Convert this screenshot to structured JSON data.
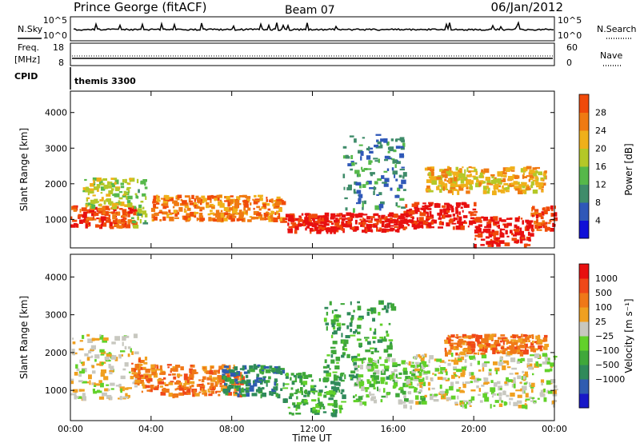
{
  "header": {
    "station": "Prince George (fitACF)",
    "beam": "Beam 07",
    "date": "06/Jan/2012"
  },
  "top_panels": {
    "nsky_label": "N.Sky",
    "nsearch_label": "N.Search",
    "noise_ticks": [
      "10^5",
      "10^0"
    ],
    "freq_label": "Freq.",
    "freq_unit": "[MHz]",
    "freq_ticks": [
      "18",
      "8"
    ],
    "nave_label": "Nave",
    "nave_ticks": [
      "60",
      "0"
    ],
    "cpid_label": "CPID",
    "cpid_value": "themis 3300"
  },
  "colors": {
    "power": [
      "#1010d8",
      "#2f58b8",
      "#3f8c6a",
      "#56b84a",
      "#b4c828",
      "#f0b01a",
      "#f07a12",
      "#f04a0a",
      "#e81010"
    ],
    "velocity": [
      "#1818c8",
      "#2f5cb0",
      "#2f8a5a",
      "#3fa83a",
      "#62d12a",
      "#c8c8c0",
      "#f0a020",
      "#f07818",
      "#f04818",
      "#e81010"
    ]
  },
  "chart_data": [
    {
      "type": "heatmap",
      "name": "power",
      "ylabel": "Slant Range [km]",
      "yticks": [
        "1000",
        "2000",
        "3000",
        "4000"
      ],
      "ylim": [
        200,
        4600
      ],
      "xlim": [
        "00:00",
        "24:00"
      ],
      "colorbar_label": "Power [dB]",
      "colorbar_ticks": [
        "4",
        "8",
        "12",
        "16",
        "20",
        "24",
        "28"
      ],
      "colorbar_range": [
        0,
        32
      ],
      "bands": [
        {
          "t0": 0.0,
          "t1": 3.2,
          "r0": 800,
          "r1": 1400,
          "level": 7
        },
        {
          "t0": 0.6,
          "t1": 3.0,
          "r0": 1400,
          "r1": 2200,
          "level": 4
        },
        {
          "t0": 3.0,
          "t1": 3.7,
          "r0": 800,
          "r1": 2300,
          "level": 3
        },
        {
          "t0": 4.0,
          "t1": 10.5,
          "r0": 1000,
          "r1": 1700,
          "level": 6
        },
        {
          "t0": 10.5,
          "t1": 16.5,
          "r0": 700,
          "r1": 1200,
          "level": 8
        },
        {
          "t0": 13.5,
          "t1": 16.5,
          "r0": 1300,
          "r1": 3400,
          "level": 2
        },
        {
          "t0": 16.5,
          "t1": 20.0,
          "r0": 800,
          "r1": 1500,
          "level": 8
        },
        {
          "t0": 20.0,
          "t1": 22.8,
          "r0": 300,
          "r1": 1100,
          "level": 8
        },
        {
          "t0": 22.8,
          "t1": 24.0,
          "r0": 700,
          "r1": 1400,
          "level": 7
        },
        {
          "t0": 17.5,
          "t1": 23.5,
          "r0": 1800,
          "r1": 2500,
          "level": 5
        }
      ]
    },
    {
      "type": "heatmap",
      "name": "velocity",
      "ylabel": "Slant Range [km]",
      "yticks": [
        "1000",
        "2000",
        "3000",
        "4000"
      ],
      "ylim": [
        200,
        4600
      ],
      "xlabel": "Time UT",
      "xticks": [
        "00:00",
        "04:00",
        "08:00",
        "12:00",
        "16:00",
        "20:00",
        "00:00"
      ],
      "xlim": [
        "00:00",
        "24:00"
      ],
      "colorbar_label": "Velocity [m s⁻¹]",
      "colorbar_ticks": [
        "1000",
        "500",
        "100",
        "25",
        "−25",
        "−100",
        "−500",
        "−1000"
      ],
      "bands": [
        {
          "t0": 0.0,
          "t1": 3.2,
          "r0": 800,
          "r1": 2500,
          "level": 5
        },
        {
          "t0": 3.0,
          "t1": 3.8,
          "r0": 1200,
          "r1": 1900,
          "level": 7
        },
        {
          "t0": 3.5,
          "t1": 8.5,
          "r0": 900,
          "r1": 1700,
          "level": 7
        },
        {
          "t0": 7.5,
          "t1": 10.5,
          "r0": 900,
          "r1": 1700,
          "level": 2
        },
        {
          "t0": 10.5,
          "t1": 13.5,
          "r0": 400,
          "r1": 1500,
          "level": 3
        },
        {
          "t0": 12.5,
          "t1": 16.0,
          "r0": 1300,
          "r1": 3400,
          "level": 3
        },
        {
          "t0": 14.0,
          "t1": 17.5,
          "r0": 700,
          "r1": 1900,
          "level": 4
        },
        {
          "t0": 16.5,
          "t1": 24.0,
          "r0": 600,
          "r1": 2000,
          "level": 5
        },
        {
          "t0": 18.5,
          "t1": 23.5,
          "r0": 2000,
          "r1": 2500,
          "level": 7
        }
      ]
    }
  ]
}
